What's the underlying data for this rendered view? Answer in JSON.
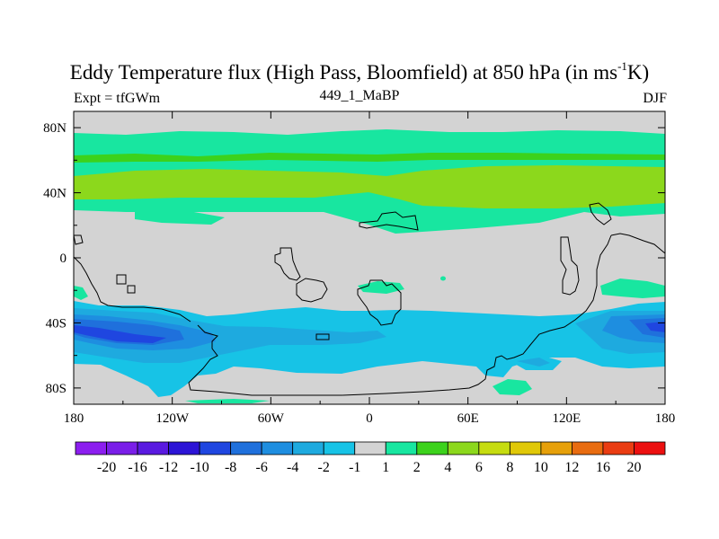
{
  "title": {
    "main": "Eddy Temperature flux (High Pass, Bloomfield) at 850 hPa (in ms",
    "sup": "-1",
    "unit_end": "K)"
  },
  "subtitle": {
    "left": "Expt = tfGWm",
    "center": "449_1_MaBP",
    "right": "DJF"
  },
  "map_data": {
    "type": "filled-contour-map",
    "variable": "eddy temperature flux",
    "level": "850 hPa",
    "lon_range": [
      -180,
      180
    ],
    "lat_range": [
      -90,
      90
    ],
    "x_ticks": [
      {
        "lon": -180,
        "label": "180"
      },
      {
        "lon": -120,
        "label": "120W"
      },
      {
        "lon": -60,
        "label": "60W"
      },
      {
        "lon": 0,
        "label": "0"
      },
      {
        "lon": 60,
        "label": "60E"
      },
      {
        "lon": 120,
        "label": "120E"
      },
      {
        "lon": 180,
        "label": "180"
      }
    ],
    "y_ticks": [
      {
        "lat": 80,
        "label": "80N"
      },
      {
        "lat": 40,
        "label": "40N"
      },
      {
        "lat": 0,
        "label": "0"
      },
      {
        "lat": -40,
        "label": "40S"
      },
      {
        "lat": -80,
        "label": "80S"
      }
    ],
    "background_color": "#d3d3d3"
  },
  "colorbar": {
    "labels": [
      "-20",
      "-16",
      "-12",
      "-10",
      "-8",
      "-6",
      "-4",
      "-2",
      "-1",
      "1",
      "2",
      "4",
      "6",
      "8",
      "10",
      "12",
      "16",
      "20"
    ],
    "colors": [
      "#8c1eef",
      "#7a1ee8",
      "#5a1ae0",
      "#2c14d6",
      "#1f46e0",
      "#1f70dc",
      "#1e8ee0",
      "#1eaadf",
      "#17c3e6",
      "#d3d3d3",
      "#18e6a0",
      "#3cd21c",
      "#8cd81c",
      "#c6dc10",
      "#e0c808",
      "#e6a00a",
      "#e86c10",
      "#ea3c12",
      "#ec1010"
    ]
  }
}
